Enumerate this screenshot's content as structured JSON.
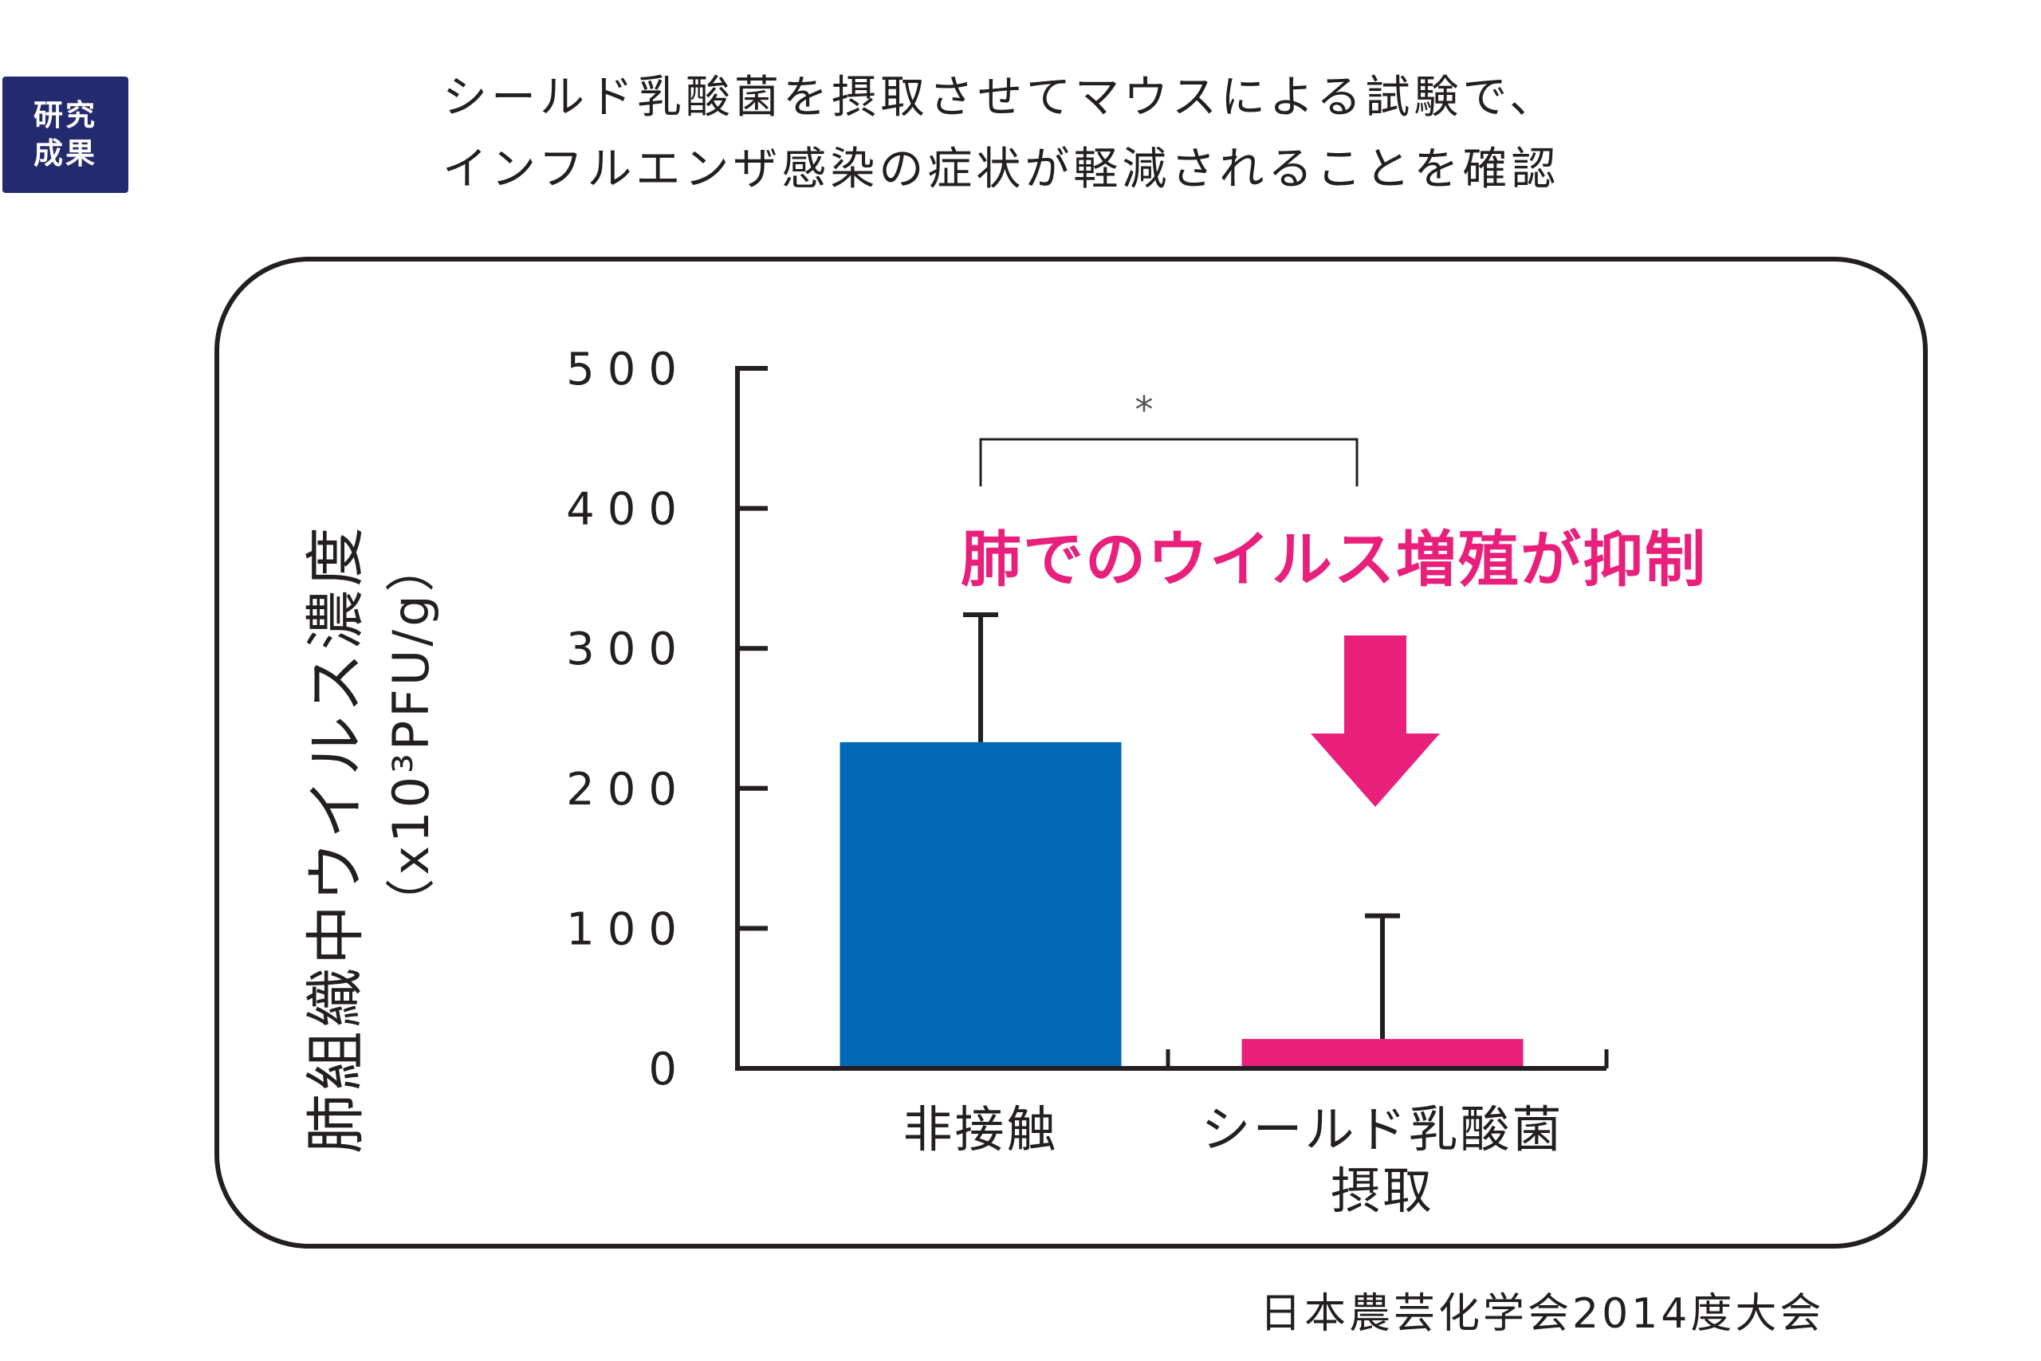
{
  "badge": {
    "line1": "研究",
    "line2": "成果"
  },
  "title": {
    "line1": "シールド乳酸菌を摂取させてマウスによる試験で、",
    "line2": "インフルエンザ感染の症状が軽減されることを確認"
  },
  "source": "日本農芸化学会2014度大会",
  "colors": {
    "bar_control": "#0068b7",
    "bar_treated": "#e8207b",
    "highlight": "#e8207b",
    "badge_bg": "#232a6e",
    "text": "#231f20"
  },
  "chart_data": {
    "type": "bar",
    "ylabel_main": "肺組織中ウイルス濃度",
    "ylabel_unit": "（x10³PFU/g）",
    "categories": [
      [
        "非接触"
      ],
      [
        "シールド乳酸菌",
        "摂取"
      ]
    ],
    "values": [
      233,
      21
    ],
    "error_upper": [
      324,
      109
    ],
    "ylim": [
      0,
      500
    ],
    "yticks": [
      0,
      100,
      200,
      300,
      400,
      500
    ],
    "ytick_labels": [
      "0",
      "100",
      "200",
      "300",
      "400",
      "500"
    ],
    "significance_marker": "*",
    "annotation": "肺でのウイルス増殖が抑制",
    "grid": false,
    "legend": false
  }
}
